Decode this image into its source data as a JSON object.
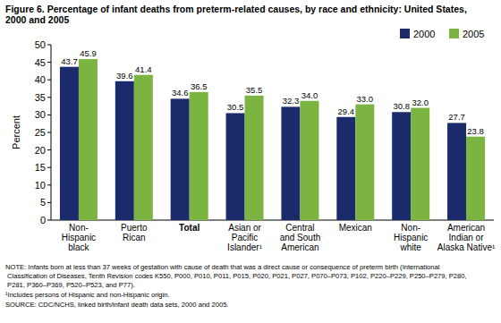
{
  "chart_data": {
    "type": "bar",
    "title": "Figure 6.  Percentage of infant deaths from preterm-related causes, by race and ethnicity:  United States,\n2000 and 2005",
    "y_label": "Percent",
    "categories": [
      "Non-\nHispanic\nblack",
      "Puerto\nRican",
      "Total",
      "Asian or\nPacific\nIslander¹",
      "Central\nand South\nAmerican",
      "Mexican",
      "Non-\nHispanic\nwhite",
      "American\nIndian or\nAlaska Native¹"
    ],
    "series": [
      {
        "name": "2000",
        "color": "#1b2a6b",
        "values": [
          43.7,
          39.6,
          34.6,
          30.5,
          32.3,
          29.4,
          30.8,
          27.7
        ]
      },
      {
        "name": "2005",
        "color": "#7cb442",
        "values": [
          45.9,
          41.4,
          36.5,
          35.5,
          34.0,
          33.0,
          32.0,
          23.8
        ],
        "value_labels": [
          "45.9",
          "41.4",
          "36.5",
          "35.5",
          "34.0",
          "33.0",
          "32.0",
          "23.8"
        ]
      }
    ],
    "ylim": [
      0,
      50
    ],
    "yticks": [
      0,
      5,
      10,
      15,
      20,
      25,
      30,
      35,
      40,
      45,
      50
    ],
    "grid": false,
    "legend": "top-right",
    "data_labels": true,
    "notes": [
      "NOTE: Infants born at less than 37 weeks of gestation with cause of death that was a direct cause or consequence of preterm birth (International\n    Classification of Diseases, Tenth Revision codes K550, P000, P010, P011, P015, P020, P021, P027, P070–P073, P102, P220–P229, P250–P279, P280,\n    P281, P360–P369, P520–P523, and P77).",
      "¹Includes persons of Hispanic and non-Hispanic origin.",
      "SOURCE: CDC/NCHS, linked birth/infant death data sets, 2000 and 2005."
    ]
  }
}
